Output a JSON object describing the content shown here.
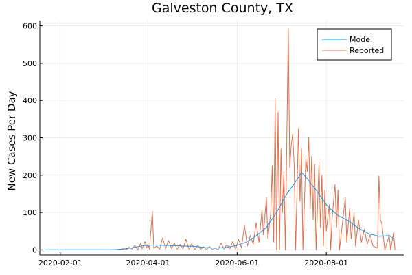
{
  "chart_data": {
    "type": "line",
    "title": "Galveston County, TX",
    "xlabel": "",
    "ylabel": "New Cases Per Day",
    "ylim": [
      -14,
      614
    ],
    "xlim": [
      "2020-01-18",
      "2020-09-23"
    ],
    "x_ticks": [
      "2020-02-01",
      "2020-04-01",
      "2020-06-01",
      "2020-08-01"
    ],
    "y_ticks": [
      0,
      100,
      200,
      300,
      400,
      500,
      600
    ],
    "grid": true,
    "legend": {
      "position": "top-right"
    },
    "series": [
      {
        "name": "Model",
        "color": "#009af9",
        "points": [
          [
            "2020-01-22",
            0
          ],
          [
            "2020-03-07",
            0
          ],
          [
            "2020-03-15",
            2
          ],
          [
            "2020-03-22",
            6
          ],
          [
            "2020-03-29",
            11
          ],
          [
            "2020-04-05",
            13
          ],
          [
            "2020-04-12",
            12
          ],
          [
            "2020-04-19",
            11
          ],
          [
            "2020-04-26",
            10
          ],
          [
            "2020-05-03",
            9
          ],
          [
            "2020-05-10",
            6
          ],
          [
            "2020-05-17",
            5
          ],
          [
            "2020-05-24",
            6
          ],
          [
            "2020-05-31",
            11
          ],
          [
            "2020-06-07",
            20
          ],
          [
            "2020-06-14",
            37
          ],
          [
            "2020-06-21",
            60
          ],
          [
            "2020-06-28",
            100
          ],
          [
            "2020-07-05",
            150
          ],
          [
            "2020-07-12",
            188
          ],
          [
            "2020-07-15",
            208
          ],
          [
            "2020-07-19",
            190
          ],
          [
            "2020-07-26",
            155
          ],
          [
            "2020-08-02",
            116
          ],
          [
            "2020-08-09",
            92
          ],
          [
            "2020-08-16",
            78
          ],
          [
            "2020-08-23",
            58
          ],
          [
            "2020-08-30",
            43
          ],
          [
            "2020-09-06",
            36
          ],
          [
            "2020-09-13",
            38
          ],
          [
            "2020-09-16",
            30
          ]
        ]
      },
      {
        "name": "Reported",
        "color": "#e26f46",
        "points": [
          [
            "2020-01-22",
            0
          ],
          [
            "2020-03-07",
            0
          ],
          [
            "2020-03-12",
            1
          ],
          [
            "2020-03-15",
            3
          ],
          [
            "2020-03-17",
            0
          ],
          [
            "2020-03-19",
            7
          ],
          [
            "2020-03-21",
            2
          ],
          [
            "2020-03-23",
            12
          ],
          [
            "2020-03-25",
            0
          ],
          [
            "2020-03-27",
            18
          ],
          [
            "2020-03-28",
            3
          ],
          [
            "2020-03-30",
            22
          ],
          [
            "2020-03-31",
            5
          ],
          [
            "2020-04-01",
            15
          ],
          [
            "2020-04-02",
            2
          ],
          [
            "2020-04-04",
            103
          ],
          [
            "2020-04-05",
            4
          ],
          [
            "2020-04-07",
            10
          ],
          [
            "2020-04-09",
            2
          ],
          [
            "2020-04-11",
            32
          ],
          [
            "2020-04-13",
            3
          ],
          [
            "2020-04-15",
            25
          ],
          [
            "2020-04-17",
            4
          ],
          [
            "2020-04-19",
            18
          ],
          [
            "2020-04-21",
            2
          ],
          [
            "2020-04-23",
            15
          ],
          [
            "2020-04-25",
            3
          ],
          [
            "2020-04-27",
            28
          ],
          [
            "2020-04-29",
            2
          ],
          [
            "2020-05-01",
            16
          ],
          [
            "2020-05-03",
            1
          ],
          [
            "2020-05-05",
            12
          ],
          [
            "2020-05-07",
            2
          ],
          [
            "2020-05-09",
            8
          ],
          [
            "2020-05-11",
            0
          ],
          [
            "2020-05-13",
            9
          ],
          [
            "2020-05-15",
            1
          ],
          [
            "2020-05-17",
            5
          ],
          [
            "2020-05-19",
            0
          ],
          [
            "2020-05-21",
            18
          ],
          [
            "2020-05-23",
            2
          ],
          [
            "2020-05-25",
            14
          ],
          [
            "2020-05-27",
            3
          ],
          [
            "2020-05-29",
            22
          ],
          [
            "2020-05-31",
            2
          ],
          [
            "2020-06-02",
            28
          ],
          [
            "2020-06-04",
            5
          ],
          [
            "2020-06-06",
            65
          ],
          [
            "2020-06-08",
            10
          ],
          [
            "2020-06-10",
            38
          ],
          [
            "2020-06-12",
            15
          ],
          [
            "2020-06-14",
            72
          ],
          [
            "2020-06-16",
            20
          ],
          [
            "2020-06-18",
            108
          ],
          [
            "2020-06-19",
            40
          ],
          [
            "2020-06-21",
            140
          ],
          [
            "2020-06-22",
            30
          ],
          [
            "2020-06-24",
            100
          ],
          [
            "2020-06-25",
            225
          ],
          [
            "2020-06-26",
            20
          ],
          [
            "2020-06-27",
            405
          ],
          [
            "2020-06-28",
            0
          ],
          [
            "2020-06-29",
            368
          ],
          [
            "2020-06-30",
            0
          ],
          [
            "2020-07-01",
            270
          ],
          [
            "2020-07-02",
            100
          ],
          [
            "2020-07-03",
            210
          ],
          [
            "2020-07-04",
            0
          ],
          [
            "2020-07-06",
            595
          ],
          [
            "2020-07-07",
            220
          ],
          [
            "2020-07-08",
            280
          ],
          [
            "2020-07-09",
            310
          ],
          [
            "2020-07-10",
            230
          ],
          [
            "2020-07-11",
            0
          ],
          [
            "2020-07-13",
            325
          ],
          [
            "2020-07-14",
            130
          ],
          [
            "2020-07-15",
            270
          ],
          [
            "2020-07-16",
            0
          ],
          [
            "2020-07-18",
            245
          ],
          [
            "2020-07-19",
            210
          ],
          [
            "2020-07-20",
            300
          ],
          [
            "2020-07-21",
            110
          ],
          [
            "2020-07-22",
            250
          ],
          [
            "2020-07-23",
            80
          ],
          [
            "2020-07-24",
            230
          ],
          [
            "2020-07-25",
            0
          ],
          [
            "2020-07-27",
            235
          ],
          [
            "2020-07-28",
            60
          ],
          [
            "2020-07-29",
            200
          ],
          [
            "2020-07-30",
            10
          ],
          [
            "2020-07-31",
            160
          ],
          [
            "2020-08-01",
            50
          ],
          [
            "2020-08-03",
            120
          ],
          [
            "2020-08-04",
            0
          ],
          [
            "2020-08-05",
            85
          ],
          [
            "2020-08-07",
            175
          ],
          [
            "2020-08-08",
            60
          ],
          [
            "2020-08-09",
            160
          ],
          [
            "2020-08-10",
            0
          ],
          [
            "2020-08-12",
            70
          ],
          [
            "2020-08-14",
            140
          ],
          [
            "2020-08-15",
            20
          ],
          [
            "2020-08-17",
            110
          ],
          [
            "2020-08-18",
            30
          ],
          [
            "2020-08-20",
            100
          ],
          [
            "2020-08-21",
            10
          ],
          [
            "2020-08-23",
            80
          ],
          [
            "2020-08-25",
            20
          ],
          [
            "2020-08-27",
            55
          ],
          [
            "2020-08-29",
            15
          ],
          [
            "2020-08-31",
            40
          ],
          [
            "2020-09-02",
            10
          ],
          [
            "2020-09-05",
            5
          ],
          [
            "2020-09-06",
            198
          ],
          [
            "2020-09-07",
            80
          ],
          [
            "2020-09-08",
            70
          ],
          [
            "2020-09-10",
            0
          ],
          [
            "2020-09-12",
            25
          ],
          [
            "2020-09-13",
            40
          ],
          [
            "2020-09-14",
            0
          ],
          [
            "2020-09-16",
            45
          ],
          [
            "2020-09-17",
            0
          ]
        ]
      }
    ]
  }
}
